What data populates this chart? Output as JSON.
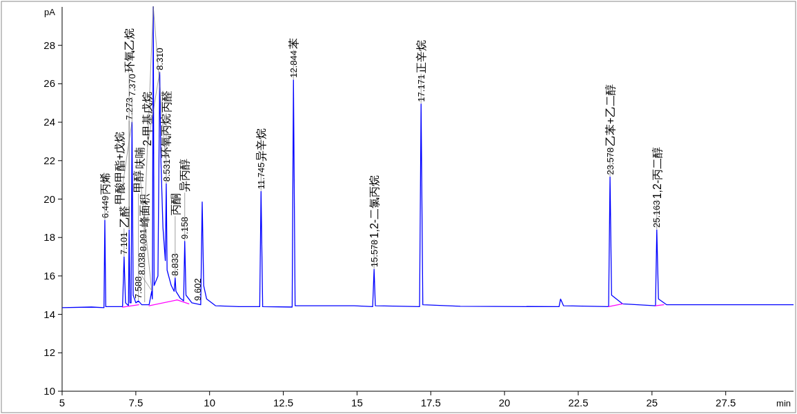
{
  "chart_data": {
    "type": "line",
    "xlabel": "min",
    "ylabel": "pA",
    "xlim": [
      5,
      29.8
    ],
    "ylim": [
      10,
      30
    ],
    "xticks": [
      5,
      7.5,
      10,
      12.5,
      15,
      17.5,
      20,
      22.5,
      25,
      27.5
    ],
    "yticks": [
      10,
      12,
      14,
      16,
      18,
      20,
      22,
      24,
      26,
      28
    ],
    "grid": false,
    "marker": "none",
    "line_style": "solid",
    "series": [
      {
        "color": "#0000ff",
        "x": [
          5.0,
          6.0,
          6.42,
          6.449,
          6.48,
          7.05,
          7.101,
          7.15,
          7.25,
          7.273,
          7.3,
          7.34,
          7.37,
          7.41,
          7.5,
          7.588,
          7.7,
          7.95,
          8.038,
          8.06,
          8.091,
          8.12,
          8.25,
          8.31,
          8.35,
          8.42,
          8.5,
          8.531,
          8.56,
          8.7,
          8.8,
          8.833,
          8.86,
          9.0,
          9.12,
          9.158,
          9.2,
          9.4,
          9.7,
          9.75,
          9.8,
          9.9,
          10.2,
          11.0,
          11.7,
          11.745,
          11.8,
          12.8,
          12.844,
          12.9,
          14.9,
          15.53,
          15.578,
          15.62,
          17.12,
          17.171,
          17.23,
          18.5,
          21.85,
          21.9,
          22.0,
          23.53,
          23.578,
          23.63,
          24.0,
          25.12,
          25.163,
          25.22,
          25.5,
          29.8
        ],
        "values": [
          14.35,
          14.38,
          14.35,
          18.9,
          14.4,
          14.4,
          17.0,
          14.6,
          14.45,
          18.4,
          14.6,
          14.6,
          24.0,
          15.0,
          14.6,
          14.7,
          14.5,
          14.5,
          15.2,
          14.8,
          30,
          15.5,
          16.0,
          26.6,
          22.0,
          18.5,
          16.8,
          20.8,
          16.3,
          15.5,
          15.2,
          15.9,
          15.2,
          14.85,
          14.7,
          17.8,
          15.0,
          14.6,
          14.5,
          19.85,
          15.5,
          14.8,
          14.45,
          14.4,
          14.4,
          20.4,
          14.4,
          14.38,
          26.2,
          14.45,
          14.45,
          14.4,
          16.35,
          14.45,
          14.4,
          24.95,
          14.5,
          14.42,
          14.4,
          14.8,
          14.45,
          14.4,
          21.15,
          15.0,
          14.55,
          14.45,
          18.4,
          14.8,
          14.5,
          14.5
        ]
      },
      {
        "color": "#ff00ff",
        "x": [
          7.05,
          7.6
        ],
        "values": [
          14.38,
          14.5
        ]
      },
      {
        "color": "#ff00ff",
        "x": [
          7.95,
          8.9,
          9.3
        ],
        "values": [
          14.45,
          14.75,
          14.55
        ]
      },
      {
        "color": "#ff00ff",
        "x": [
          23.53,
          24.0
        ],
        "values": [
          14.4,
          14.55
        ]
      },
      {
        "color": "#ff00ff",
        "x": [
          25.12,
          25.4
        ],
        "values": [
          14.45,
          14.5
        ]
      }
    ],
    "annotations": [
      {
        "text": "6.449",
        "x": 6.449,
        "y": 18.9
      },
      {
        "text": "7.101",
        "x": 7.101,
        "y": 17.0
      },
      {
        "text": "7.273",
        "x": 7.273,
        "y": 18.4
      },
      {
        "text": "7.370",
        "x": 7.37,
        "y": 24.0
      },
      {
        "text": "7.588",
        "x": 7.588,
        "y": 14.7
      },
      {
        "text": "8.038",
        "x": 8.038,
        "y": 15.2
      },
      {
        "text": "8.091",
        "x": 8.091,
        "y": 30
      },
      {
        "text": "8.310",
        "x": 8.31,
        "y": 26.6
      },
      {
        "text": "8.531",
        "x": 8.531,
        "y": 20.8
      },
      {
        "text": "8.833",
        "x": 8.833,
        "y": 15.9
      },
      {
        "text": "9.158",
        "x": 9.158,
        "y": 17.8
      },
      {
        "text": "9.602",
        "x": 9.602,
        "y": 14.6
      },
      {
        "text": "11.745",
        "x": 11.745,
        "y": 20.4
      },
      {
        "text": "12.844",
        "x": 12.844,
        "y": 26.2
      },
      {
        "text": "15.578",
        "x": 15.578,
        "y": 16.35
      },
      {
        "text": "17.171",
        "x": 17.171,
        "y": 24.95
      },
      {
        "text": "23.578",
        "x": 23.578,
        "y": 21.15
      },
      {
        "text": "25.163",
        "x": 25.163,
        "y": 18.4
      },
      {
        "text": "峰面积",
        "x": 7.8,
        "y": 14.6
      },
      {
        "text": "丙烯",
        "x": 6.449,
        "y": 18.9
      },
      {
        "text": "乙醛",
        "x": 7.101,
        "y": 17.0
      },
      {
        "text": "环氧乙烷",
        "x": 7.273,
        "y": 18.4
      },
      {
        "text": "甲酸甲酯+戊烷",
        "x": 7.37,
        "y": 24.0
      },
      {
        "text": "甲醇",
        "x": 7.588,
        "y": 14.7
      },
      {
        "text": "呋喃",
        "x": 8.038,
        "y": 15.2
      },
      {
        "text": "环氧丙烷",
        "x": 8.091,
        "y": 30
      },
      {
        "text": "2-甲基戊烷",
        "x": 8.31,
        "y": 26.6
      },
      {
        "text": "丙醛",
        "x": 8.531,
        "y": 20.8
      },
      {
        "text": "丙酮",
        "x": 8.833,
        "y": 15.9
      },
      {
        "text": "异丙醇",
        "x": 9.158,
        "y": 17.8
      },
      {
        "text": "异辛烷",
        "x": 11.745,
        "y": 20.4
      },
      {
        "text": "苯",
        "x": 12.844,
        "y": 26.2
      },
      {
        "text": "1,2-二氯丙烷",
        "x": 15.578,
        "y": 16.35
      },
      {
        "text": "正辛烷",
        "x": 17.171,
        "y": 24.95
      },
      {
        "text": "乙苯+乙二醇",
        "x": 23.578,
        "y": 21.15
      },
      {
        "text": "1,2-丙二醇",
        "x": 25.163,
        "y": 18.4
      }
    ]
  }
}
